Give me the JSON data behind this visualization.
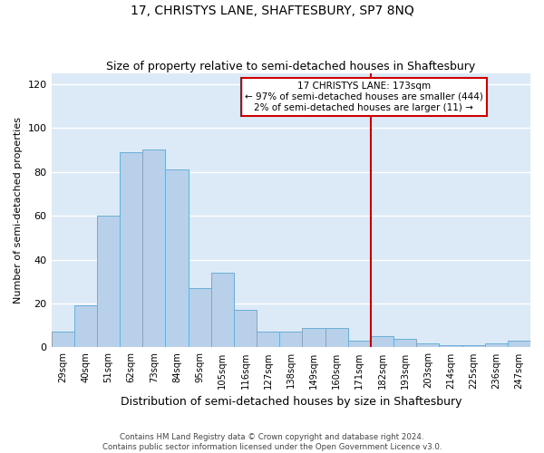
{
  "title": "17, CHRISTYS LANE, SHAFTESBURY, SP7 8NQ",
  "subtitle": "Size of property relative to semi-detached houses in Shaftesbury",
  "xlabel": "Distribution of semi-detached houses by size in Shaftesbury",
  "ylabel": "Number of semi-detached properties",
  "footer_line1": "Contains HM Land Registry data © Crown copyright and database right 2024.",
  "footer_line2": "Contains public sector information licensed under the Open Government Licence v3.0.",
  "categories": [
    "29sqm",
    "40sqm",
    "51sqm",
    "62sqm",
    "73sqm",
    "84sqm",
    "95sqm",
    "105sqm",
    "116sqm",
    "127sqm",
    "138sqm",
    "149sqm",
    "160sqm",
    "171sqm",
    "182sqm",
    "193sqm",
    "203sqm",
    "214sqm",
    "225sqm",
    "236sqm",
    "247sqm"
  ],
  "values": [
    7,
    19,
    60,
    89,
    90,
    81,
    27,
    34,
    17,
    7,
    7,
    9,
    9,
    3,
    5,
    4,
    2,
    1,
    1,
    2,
    3
  ],
  "bar_color": "#b8d0ea",
  "bar_edge_color": "#6baed6",
  "background_color": "#dce9f7",
  "grid_color": "#ffffff",
  "property_line_x": 13.5,
  "property_line_color": "#cc0000",
  "annotation_text": "17 CHRISTYS LANE: 173sqm\n← 97% of semi-detached houses are smaller (444)\n2% of semi-detached houses are larger (11) →",
  "annotation_box_color": "#ffffff",
  "annotation_box_edge": "#cc0000",
  "ylim": [
    0,
    125
  ],
  "yticks": [
    0,
    20,
    40,
    60,
    80,
    100,
    120
  ],
  "fig_bg": "#ffffff",
  "title_fontsize": 10,
  "subtitle_fontsize": 9
}
